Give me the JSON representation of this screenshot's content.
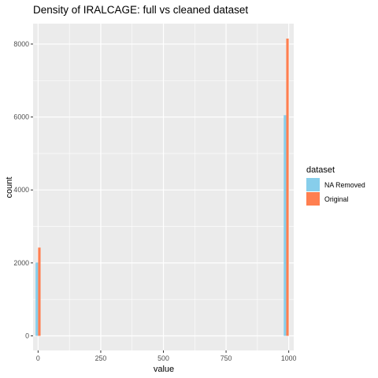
{
  "chart_data": {
    "type": "bar",
    "title": "Density of IRALCAGE: full vs cleaned dataset",
    "xlabel": "value",
    "ylabel": "count",
    "xlim": [
      -20,
      1020
    ],
    "ylim": [
      -400,
      8560
    ],
    "x_ticks": [
      {
        "value": 0,
        "label": "0"
      },
      {
        "value": 250,
        "label": "250"
      },
      {
        "value": 500,
        "label": "500"
      },
      {
        "value": 750,
        "label": "750"
      },
      {
        "value": 1000,
        "label": "1000"
      }
    ],
    "y_ticks": [
      {
        "value": 0,
        "label": "0"
      },
      {
        "value": 2000,
        "label": "2000"
      },
      {
        "value": 4000,
        "label": "4000"
      },
      {
        "value": 6000,
        "label": "6000"
      },
      {
        "value": 8000,
        "label": "8000"
      }
    ],
    "bin_width": 10,
    "grid": true,
    "legend": {
      "title": "dataset",
      "position": "right",
      "entries": [
        {
          "name": "NA Removed",
          "color": "#87CEEB"
        },
        {
          "name": "Original",
          "color": "#FF7F50"
        }
      ]
    },
    "series": [
      {
        "name": "NA Removed",
        "color": "#87CEEB",
        "bars": [
          {
            "x": -5,
            "count": 2010
          },
          {
            "x": 985,
            "count": 6050
          }
        ]
      },
      {
        "name": "Original",
        "color": "#FF7F50",
        "bars": [
          {
            "x": 5,
            "count": 2420
          },
          {
            "x": 995,
            "count": 8150
          }
        ]
      }
    ]
  }
}
